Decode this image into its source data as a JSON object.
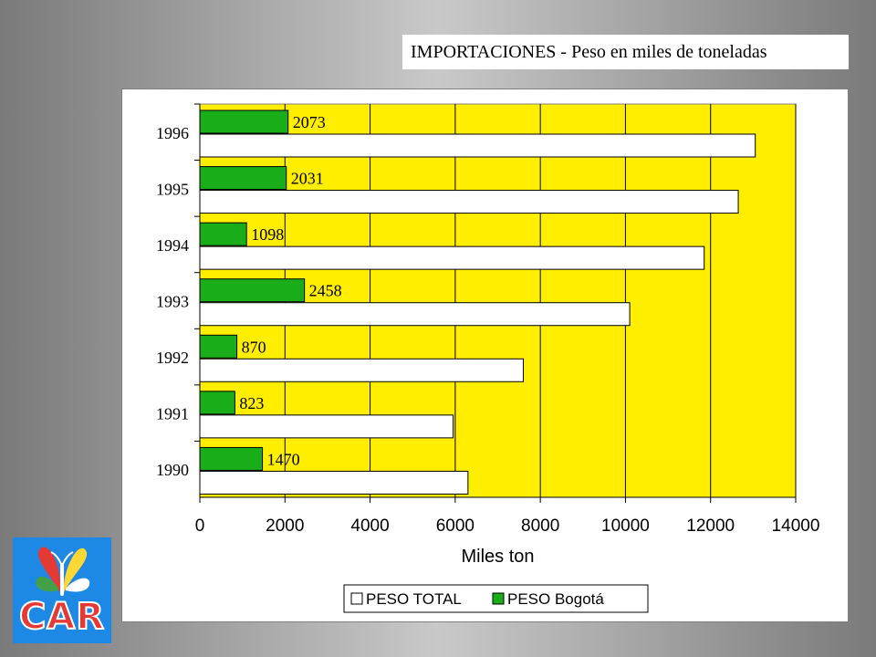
{
  "header": {
    "title": "IMPORTACIONES - Peso en miles de toneladas"
  },
  "logo": {
    "text": "CAR"
  },
  "colors": {
    "plot_bg": "#ffee00",
    "bogota": "#1aad1a",
    "total": "#ffffff",
    "logo_bg": "#1e88e5",
    "logo_text": "#e53935"
  },
  "chart_data": {
    "type": "bar",
    "orientation": "horizontal",
    "title": "",
    "categories": [
      "1990",
      "1991",
      "1992",
      "1993",
      "1994",
      "1995",
      "1996"
    ],
    "series": [
      {
        "name": "PESO TOTAL",
        "values": [
          6300,
          5950,
          7600,
          10100,
          11850,
          12650,
          13050
        ]
      },
      {
        "name": "PESO Bogotá",
        "values": [
          1470,
          823,
          870,
          2458,
          1098,
          2031,
          2073
        ]
      }
    ],
    "data_labels": [
      "1470",
      "823",
      "870",
      "2458",
      "1098",
      "2031",
      "2073"
    ],
    "xlabel": "Miles ton",
    "ylabel": "",
    "xlim": [
      0,
      14000
    ],
    "xticks": [
      "0",
      "2000",
      "4000",
      "6000",
      "8000",
      "10000",
      "12000",
      "14000"
    ],
    "grid": true,
    "legend": {
      "placement": "bottom",
      "entries": [
        "PESO TOTAL",
        "PESO Bogotá"
      ]
    }
  }
}
